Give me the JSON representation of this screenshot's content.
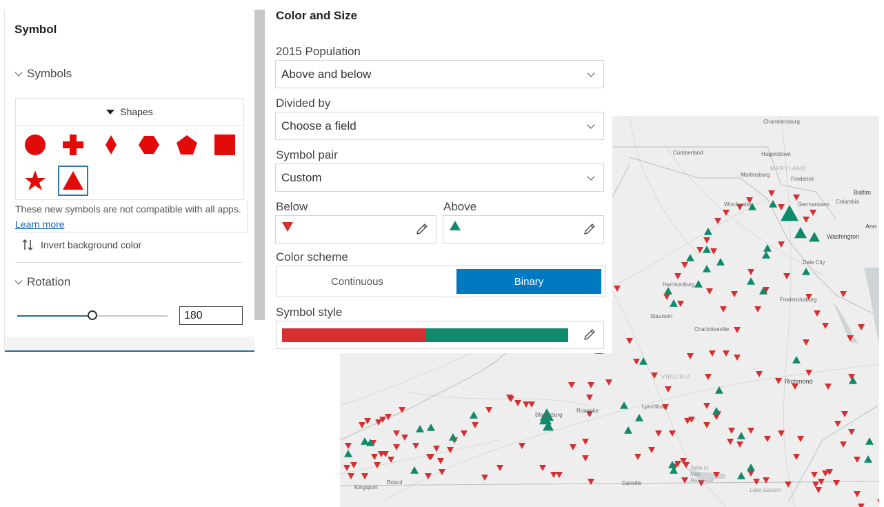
{
  "symbol_panel": {
    "title": "Symbol",
    "symbols_section": "Symbols",
    "shapes_header": "Shapes",
    "shapes": [
      "circle",
      "cross",
      "diamond",
      "hexagon",
      "pentagon",
      "square",
      "star",
      "triangle"
    ],
    "selected_shape": "triangle",
    "shape_color": "#e30a0a",
    "note_text": "These new symbols are not compatible with all apps.",
    "note_link": "Learn more",
    "invert_label": "Invert background color",
    "rotation_section": "Rotation",
    "rotation_value": "180",
    "rotation_fraction": 0.5
  },
  "color_size_panel": {
    "title": "Color and Size",
    "field_label": "2015 Population",
    "field_value": "Above and below",
    "divided_label": "Divided by",
    "divided_value": "Choose a field",
    "pair_label": "Symbol pair",
    "pair_value": "Custom",
    "below_label": "Below",
    "above_label": "Above",
    "scheme_label": "Color scheme",
    "scheme_options": [
      "Continuous",
      "Binary"
    ],
    "scheme_selected": "Binary",
    "style_label": "Symbol style",
    "below_color": "#d62f2f",
    "above_color": "#0f8a6b",
    "accent_color": "#0079c1"
  },
  "map": {
    "cities": [
      "Chambersburg",
      "Cumberland",
      "Hagerstown",
      "MARYLAND",
      "Martinsburg",
      "Frederick",
      "Baltim",
      "Winchester",
      "Germantown",
      "Columbia",
      "Ann",
      "Washington",
      "Dale City",
      "Harrisonburg",
      "Fredericksburg",
      "Staunton",
      "Charlottesville",
      "VIRGINIA",
      "Richmond",
      "Lynchburg",
      "Blacksburg",
      "Roanoke",
      "Bristol",
      "Kingsport",
      "Danville",
      "John H. Kerr Reservoir",
      "Lake Gaston"
    ]
  }
}
